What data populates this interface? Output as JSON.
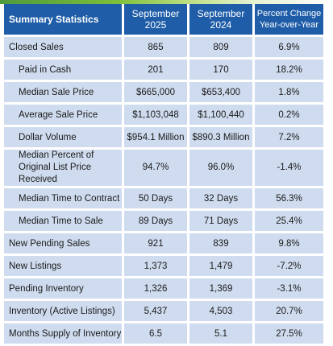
{
  "table": {
    "headers": [
      "Summary Statistics",
      "September 2025",
      "September 2024",
      "Percent Change Year-over-Year"
    ],
    "rows": [
      {
        "label": "Closed Sales",
        "sep2025": "865",
        "sep2024": "809",
        "change": "6.9%"
      },
      {
        "label": "Paid in Cash",
        "sep2025": "201",
        "sep2024": "170",
        "change": "18.2%"
      },
      {
        "label": "Median Sale Price",
        "sep2025": "$665,000",
        "sep2024": "$653,400",
        "change": "1.8%"
      },
      {
        "label": "Average Sale Price",
        "sep2025": "$1,103,048",
        "sep2024": "$1,100,440",
        "change": "0.2%"
      },
      {
        "label": "Dollar Volume",
        "sep2025": "$954.1 Million",
        "sep2024": "$890.3 Million",
        "change": "7.2%"
      },
      {
        "label": "Median Percent of Original List Price Received",
        "sep2025": "94.7%",
        "sep2024": "96.0%",
        "change": "-1.4%"
      },
      {
        "label": "Median Time to Contract",
        "sep2025": "50 Days",
        "sep2024": "32 Days",
        "change": "56.3%"
      },
      {
        "label": "Median Time to Sale",
        "sep2025": "89 Days",
        "sep2024": "71 Days",
        "change": "25.4%"
      },
      {
        "label": "New Pending Sales",
        "sep2025": "921",
        "sep2024": "839",
        "change": "9.8%"
      },
      {
        "label": "New Listings",
        "sep2025": "1,373",
        "sep2024": "1,479",
        "change": "-7.2%"
      },
      {
        "label": "Pending Inventory",
        "sep2025": "1,326",
        "sep2024": "1,369",
        "change": "-3.1%"
      },
      {
        "label": "Inventory (Active Listings)",
        "sep2025": "5,437",
        "sep2024": "4,503",
        "change": "20.7%"
      },
      {
        "label": "Months Supply of Inventory",
        "sep2025": "6.5",
        "sep2024": "5.1",
        "change": "27.5%"
      }
    ]
  },
  "colors": {
    "header_bg": "#1f5da8",
    "cell_bg": "#cfdcef",
    "accent_green": "#7cbf3a"
  }
}
